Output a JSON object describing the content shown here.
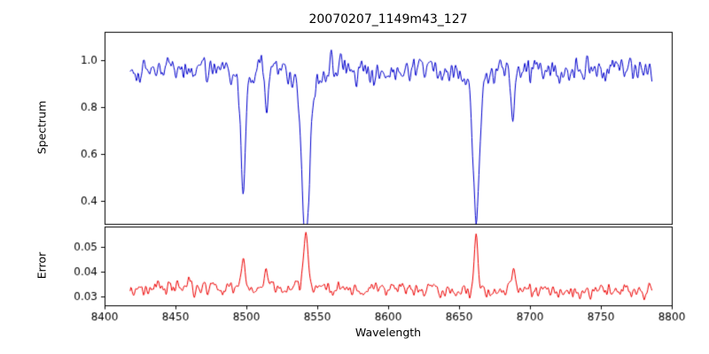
{
  "chart_data": [
    {
      "type": "line",
      "title": "20070207_1149m43_127",
      "xlabel": "Wavelength",
      "ylabel": "Spectrum",
      "xlim": [
        8400,
        8800
      ],
      "ylim": [
        0.3,
        1.12
      ],
      "xticks": [
        8400,
        8450,
        8500,
        8550,
        8600,
        8650,
        8700,
        8750,
        8800
      ],
      "yticks": [
        0.4,
        0.6,
        0.8,
        1.0
      ],
      "x_range_data": [
        8418,
        8786
      ],
      "line_color": "#0000cd",
      "baseline": 0.965,
      "noise_amplitude": 0.022,
      "absorption_lines": [
        {
          "center": 8498,
          "depth": 0.45,
          "sigma": 1.6
        },
        {
          "center": 8514,
          "depth": 0.16,
          "sigma": 1.2
        },
        {
          "center": 8542,
          "depth": 0.62,
          "sigma": 2.4
        },
        {
          "center": 8662,
          "depth": 0.55,
          "sigma": 2.0
        },
        {
          "center": 8688,
          "depth": 0.25,
          "sigma": 1.4
        }
      ],
      "grid": false,
      "legend": false
    },
    {
      "type": "line",
      "ylabel": "Error",
      "xlim": [
        8400,
        8800
      ],
      "ylim": [
        0.0265,
        0.058
      ],
      "yticks": [
        0.03,
        0.04,
        0.05
      ],
      "x_range_data": [
        8418,
        8786
      ],
      "line_color": "#ee0000",
      "baseline": 0.0338,
      "baseline_end": 0.0318,
      "noise_amplitude": 0.0012,
      "emission_lines": [
        {
          "center": 8498,
          "height": 0.012,
          "sigma": 1.3
        },
        {
          "center": 8514,
          "height": 0.006,
          "sigma": 1.0
        },
        {
          "center": 8542,
          "height": 0.023,
          "sigma": 1.6
        },
        {
          "center": 8662,
          "height": 0.021,
          "sigma": 1.4
        },
        {
          "center": 8688,
          "height": 0.008,
          "sigma": 1.2
        }
      ],
      "grid": false,
      "legend": false
    }
  ]
}
